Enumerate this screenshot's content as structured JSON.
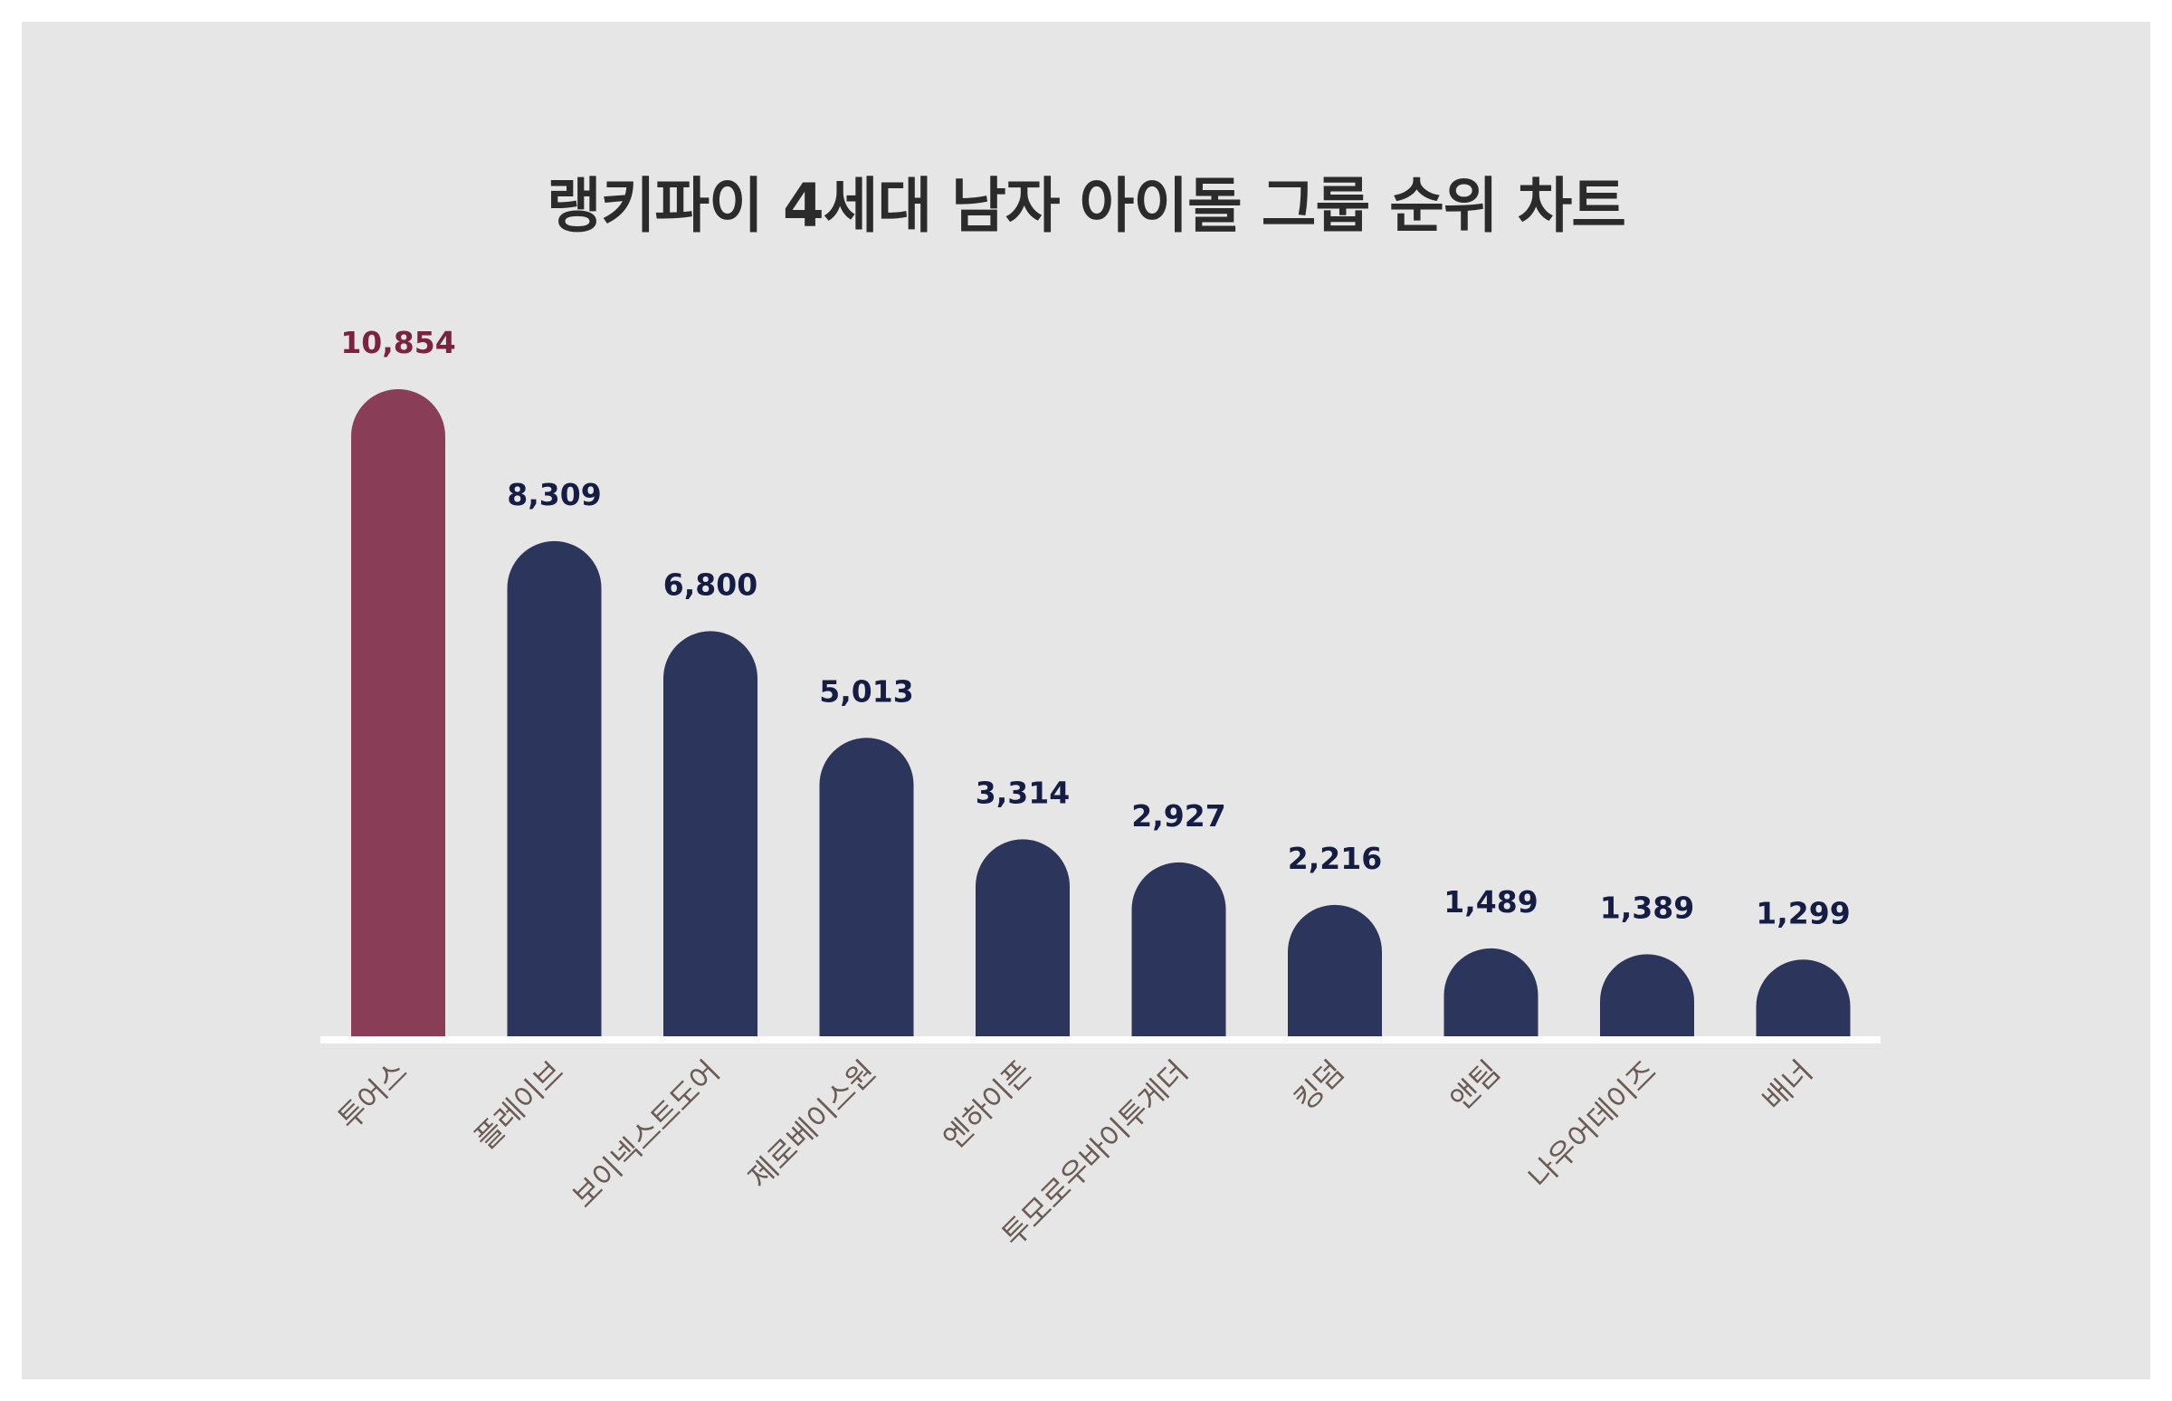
{
  "chart_data": {
    "type": "bar",
    "title": "랭키파이 4세대 남자 아이돌 그룹 순위 차트",
    "xlabel": "",
    "ylabel": "",
    "categories": [
      "투어스",
      "플레이브",
      "보이넥스트도어",
      "제로베이스원",
      "엔하이픈",
      "투모로우바이투게더",
      "킹덤",
      "앤팀",
      "나우어데이즈",
      "배너"
    ],
    "values": [
      10854,
      8309,
      6800,
      5013,
      3314,
      2927,
      2216,
      1489,
      1389,
      1299
    ],
    "value_labels": [
      "10,854",
      "8,309",
      "6,800",
      "5,013",
      "3,314",
      "2,927",
      "2,216",
      "1,489",
      "1,389",
      "1,299"
    ],
    "ylim": [
      0,
      10854
    ],
    "grid": false,
    "legend": "none",
    "colors": {
      "highlight_bar": "#8a3d56",
      "highlight_label": "#7a2240",
      "bar": "#2c365c",
      "label": "#161d45",
      "background": "#e6e6e6",
      "baseline": "#ffffff"
    }
  }
}
